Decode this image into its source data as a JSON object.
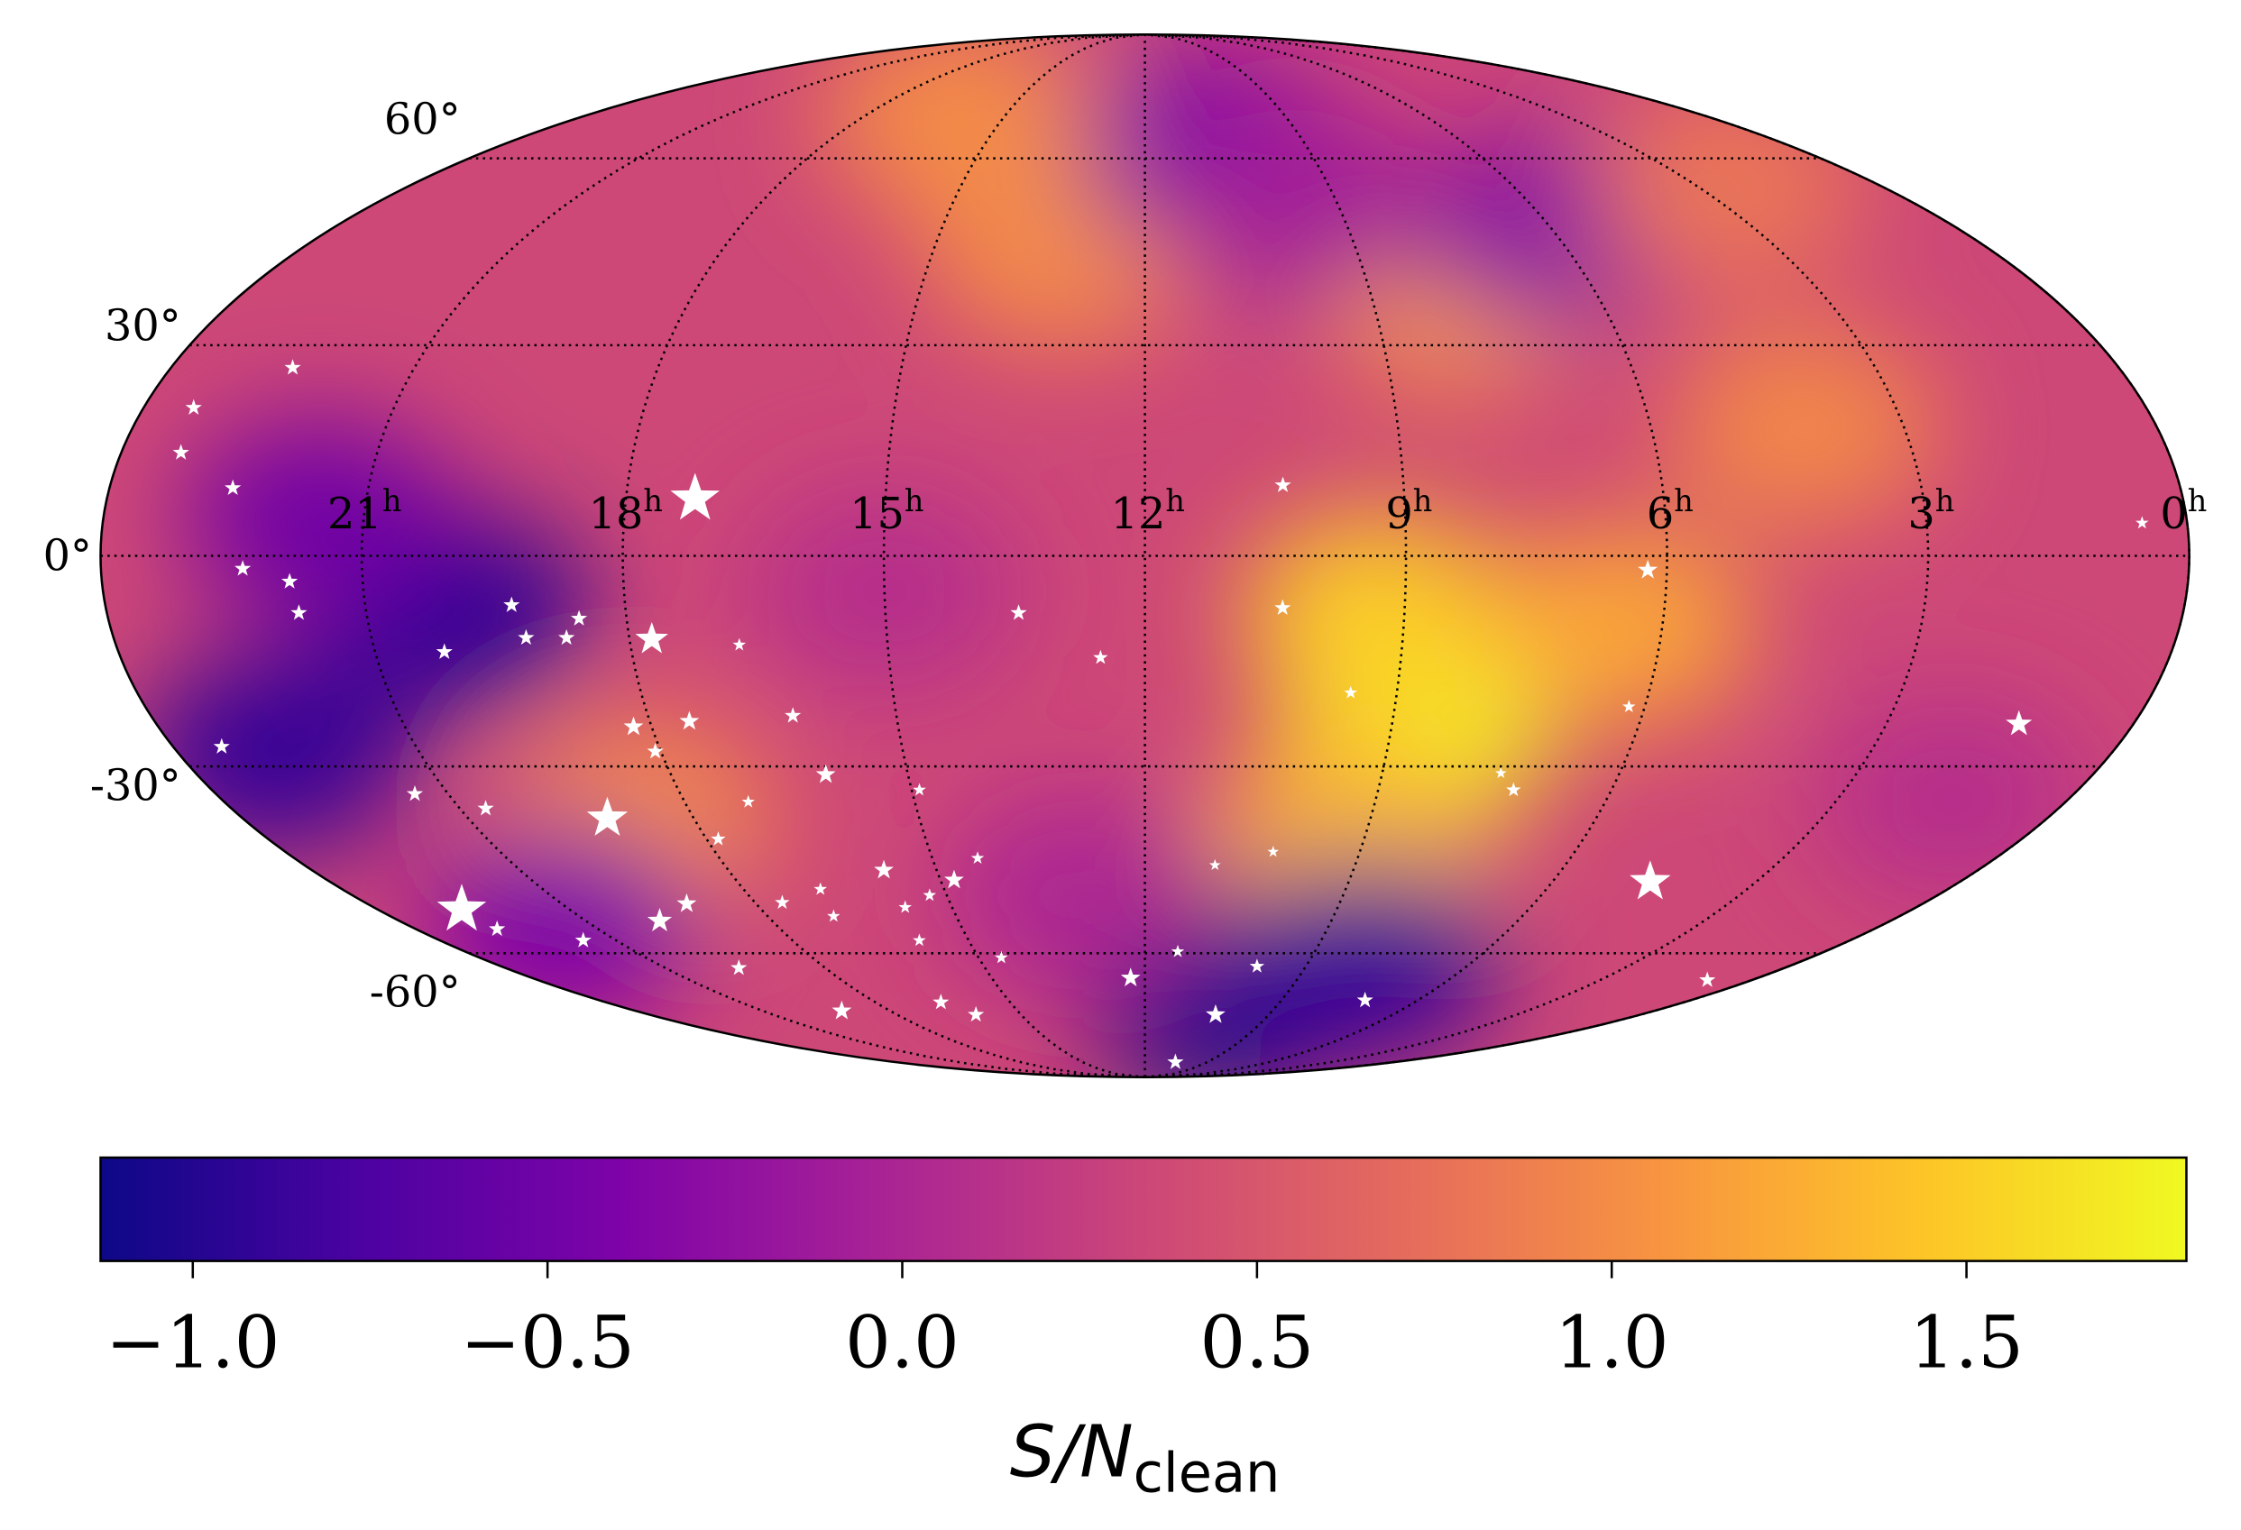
{
  "chart_data": {
    "type": "mollweide",
    "colormap": "plasma",
    "grid": true,
    "ra_ticks": [
      0,
      3,
      6,
      9,
      12,
      15,
      18,
      21
    ],
    "ra_unit": "h",
    "dec_ticks": [
      {
        "value": -60,
        "label": "-60°"
      },
      {
        "value": -30,
        "label": "-30°"
      },
      {
        "value": 0,
        "label": "0°"
      },
      {
        "value": 30,
        "label": "30°"
      },
      {
        "value": 60,
        "label": "60°"
      }
    ],
    "clim": [
      -1.13,
      1.81
    ],
    "cticks": [
      {
        "value": -1.0,
        "label": "−1.0"
      },
      {
        "value": -0.5,
        "label": "−0.5"
      },
      {
        "value": 0,
        "label": "0.0"
      },
      {
        "value": 0.5,
        "label": "0.5"
      },
      {
        "value": 1.0,
        "label": "1.0"
      },
      {
        "value": 1.5,
        "label": "1.5"
      }
    ],
    "colorbar_label": {
      "text": "S/N",
      "subscript": "clean"
    },
    "field": {
      "background": 0.35,
      "ra": [
        8.7,
        9.3,
        9.2,
        6.5,
        20.0,
        22.8,
        21.5,
        10.3,
        8.0,
        18.8,
        13.2,
        7.8,
        4.2,
        10.8,
        6.0,
        9.7,
        21.5,
        13.0,
        15.0,
        1.5,
        16.0,
        2.5
      ],
      "dec": [
        -25,
        -8,
        -40,
        -10,
        -8,
        -28,
        5,
        -70,
        -62,
        -38,
        45,
        38,
        18,
        62,
        48,
        52,
        -55,
        -50,
        -5,
        -35,
        68,
        55
      ],
      "values": [
        1.81,
        1.5,
        1.3,
        1.2,
        -0.95,
        -0.9,
        -0.5,
        -1.1,
        -0.9,
        1.0,
        1.0,
        1.1,
        0.95,
        -0.4,
        -0.3,
        -0.1,
        -0.4,
        0.0,
        0.1,
        0.1,
        1.0,
        0.8
      ]
    },
    "stars": {
      "color": "#ffffff",
      "ra": [
        17.2,
        22.5,
        23.4,
        23.3,
        22.57,
        22.37,
        21.84,
        21.78,
        23.4,
        21.43,
        20.19,
        20.66,
        22.69,
        22.66,
        19.15,
        21.56,
        19.81,
        19.07,
        17.74,
        19.31,
        18.55,
        18.73,
        19.2,
        18.22,
        17.52,
        18.07,
        16.73,
        16.25,
        16.04,
        17.17,
        17.84,
        17.58,
        19.62,
        19.14,
        15.76,
        16.95,
        16.85,
        15.73,
        15.26,
        14.8,
        14.36,
        15.84,
        16.54,
        16.09,
        14.9,
        13.46,
        12.52,
        14.59,
        12.28,
        11.42,
        10.53,
        10.29,
        9.91,
        7.16,
        10.4,
        10.41,
        9.55,
        10.21,
        11.0,
        6.22,
        6.19,
        7.26,
        7.5,
        4.56,
        0.88,
        1.39,
        0.52
      ],
      "dec": [
        8.0,
        26.7,
        20.9,
        14.5,
        9.5,
        -1.8,
        -3.6,
        -8.0,
        -27.1,
        -34.1,
        -13.5,
        -36.3,
        -52.4,
        -55.7,
        -37.8,
        -57.7,
        -54.3,
        -51.4,
        -11.7,
        -6.9,
        -8.8,
        -11.5,
        -11.5,
        -24.2,
        -23.4,
        -27.8,
        -12.5,
        -22.6,
        -31.2,
        -35.3,
        -41.0,
        -51.2,
        -62.7,
        -71.2,
        -45.9,
        -53.5,
        -49.0,
        -52.0,
        -50.0,
        -47.5,
        -44.0,
        -57.7,
        -69.4,
        -72.0,
        -33.5,
        -8.0,
        -14.3,
        -60.8,
        -64.6,
        -59.7,
        -83.8,
        -72.0,
        -62.4,
        -69.0,
        9.9,
        -7.3,
        -19.3,
        -43.0,
        -45.1,
        -2.0,
        -21.3,
        -33.5,
        -31.0,
        -47.8,
        -65.0,
        -23.8,
        4.6
      ],
      "size": [
        3,
        1,
        1,
        1,
        1,
        1,
        1,
        1,
        1,
        1,
        1,
        1,
        3,
        1,
        2.5,
        1,
        1.5,
        1.2,
        2,
        1,
        1,
        1,
        1,
        1.2,
        1.2,
        1,
        0.8,
        1,
        1.2,
        0.8,
        0.9,
        0.9,
        1,
        1.2,
        1.2,
        0.8,
        0.8,
        0.8,
        0.8,
        1.2,
        0.8,
        0.8,
        1,
        1,
        0.8,
        1,
        0.9,
        0.8,
        1.2,
        0.8,
        1,
        1.2,
        0.9,
        1,
        1,
        1,
        0.8,
        0.7,
        0.7,
        1.2,
        0.8,
        0.9,
        0.7,
        2.5,
        1,
        1.6,
        0.8
      ]
    }
  }
}
